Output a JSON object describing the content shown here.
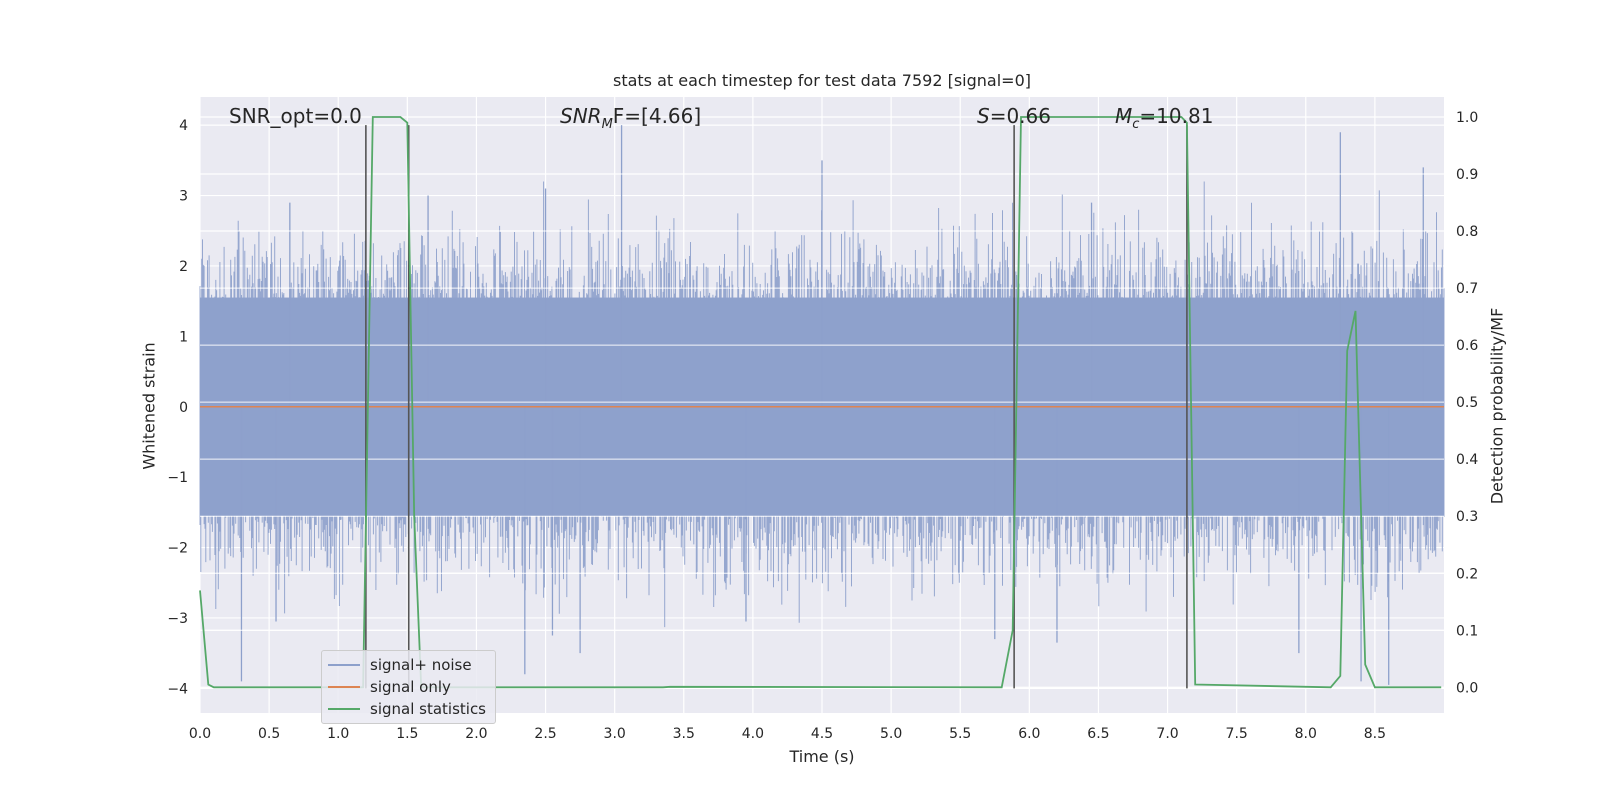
{
  "chart_data": {
    "type": "line",
    "title": "stats at each timestep for test data 7592 [signal=0]",
    "xlabel": "Time (s)",
    "ylabel": "Whitened strain",
    "y2label": "Detection probability/MF",
    "xlim": [
      0.0,
      9.0
    ],
    "ylim": [
      -4.35,
      4.4
    ],
    "y2lim": [
      -0.045,
      1.035
    ],
    "xticks": [
      "0.0",
      "0.5",
      "1.0",
      "1.5",
      "2.0",
      "2.5",
      "3.0",
      "3.5",
      "4.0",
      "4.5",
      "5.0",
      "5.5",
      "6.0",
      "6.5",
      "7.0",
      "7.5",
      "8.0",
      "8.5"
    ],
    "yticks": [
      "−4",
      "−3",
      "−2",
      "−1",
      "0",
      "1",
      "2",
      "3",
      "4"
    ],
    "y2ticks": [
      "0.0",
      "0.1",
      "0.2",
      "0.3",
      "0.4",
      "0.5",
      "0.6",
      "0.7",
      "0.8",
      "0.9",
      "1.0"
    ],
    "grid": true,
    "legend_position": "lower-left",
    "annotations": {
      "snr_opt": "SNR_opt=0.0",
      "snr_mf_base": "SNR",
      "snr_mf_sub": "M",
      "snr_mf_rest": "F=[4.66]",
      "s_stat": "=0.66",
      "s_symbol": "S",
      "mc_base": "M",
      "mc_sub": "c",
      "mc_rest": "=10.81"
    },
    "series": [
      {
        "name": "signal+ noise",
        "color": "#8da0cb",
        "description_of_values": "noise band",
        "x": [
          0.0,
          9.0
        ],
        "band_low": [
          -1.55,
          -1.55
        ],
        "band_high": [
          1.55,
          1.55
        ],
        "spikes": [
          {
            "x": 0.3,
            "y": -3.9
          },
          {
            "x": 0.55,
            "y": -3.05
          },
          {
            "x": 0.65,
            "y": 2.9
          },
          {
            "x": 1.65,
            "y": 3.0
          },
          {
            "x": 2.35,
            "y": -3.8
          },
          {
            "x": 2.5,
            "y": 3.1
          },
          {
            "x": 2.55,
            "y": -3.25
          },
          {
            "x": 2.75,
            "y": -3.5
          },
          {
            "x": 3.05,
            "y": 4.0
          },
          {
            "x": 3.95,
            "y": -3.05
          },
          {
            "x": 4.5,
            "y": 3.5
          },
          {
            "x": 5.75,
            "y": -3.3
          },
          {
            "x": 6.2,
            "y": -3.35
          },
          {
            "x": 6.45,
            "y": 2.9
          },
          {
            "x": 7.95,
            "y": -3.5
          },
          {
            "x": 8.25,
            "y": 3.9
          },
          {
            "x": 8.4,
            "y": -3.9
          },
          {
            "x": 8.6,
            "y": -3.95
          },
          {
            "x": 8.85,
            "y": 3.4
          }
        ]
      },
      {
        "name": "signal only",
        "color": "#dd8452",
        "x": [
          0.0,
          9.0
        ],
        "y": [
          0.0,
          0.0
        ]
      },
      {
        "name": "signal statistics",
        "color": "#55a868",
        "axis": "right",
        "x": [
          0.0,
          0.06,
          0.1,
          1.18,
          1.25,
          1.45,
          1.5,
          1.55,
          1.6,
          3.35,
          3.4,
          5.8,
          5.88,
          5.94,
          7.1,
          7.14,
          7.2,
          8.18,
          8.25,
          8.3,
          8.36,
          8.43,
          8.5,
          8.98
        ],
        "y": [
          0.17,
          0.005,
          0.0,
          0.0,
          1.0,
          1.0,
          0.99,
          0.3,
          0.0,
          0.0,
          0.001,
          0.0,
          0.1,
          1.0,
          1.0,
          0.99,
          0.005,
          0.0,
          0.02,
          0.59,
          0.66,
          0.04,
          0.0,
          0.0
        ]
      }
    ],
    "vertical_markers_x": [
      1.2,
      1.51,
      5.89,
      7.14
    ],
    "marker_color": "#555555"
  }
}
